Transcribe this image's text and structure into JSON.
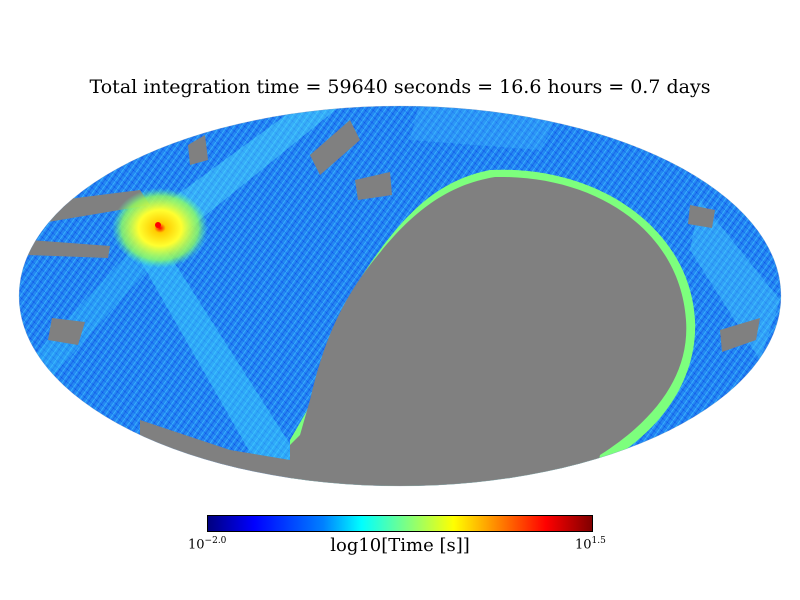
{
  "title": "Total integration time = 59640 seconds = 16.6 hours = 0.7 days",
  "projection": "mollweide",
  "colorbar": {
    "label": "log10[Time [s]]",
    "min_base": "10",
    "min_exp": "−2.0",
    "max_base": "10",
    "max_exp": "1.5",
    "colormap": "jet"
  },
  "colors": {
    "unobserved": "#808080",
    "low": "#0000ff",
    "mid": "#00ffff",
    "high": "#ffff00",
    "peak": "#ff0000"
  }
}
